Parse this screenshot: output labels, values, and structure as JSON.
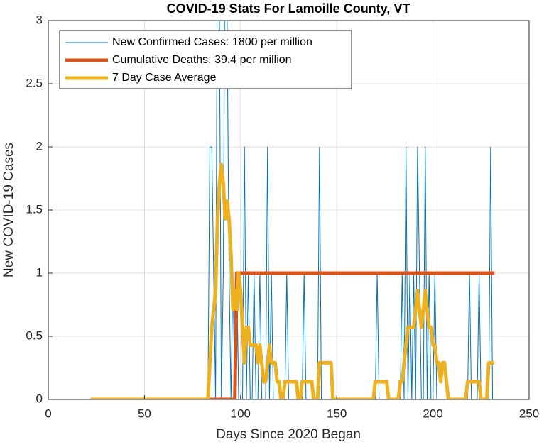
{
  "chart_data": {
    "type": "line",
    "title": "COVID-19 Stats For Lamoille County, VT",
    "x_label": "Days Since 2020 Began",
    "y_label": "New COVID-19 Cases",
    "xlim": [
      0,
      250
    ],
    "xticks": [
      0,
      50,
      100,
      150,
      200,
      250
    ],
    "ylim": [
      0,
      3
    ],
    "yticks": [
      0,
      0.5,
      1,
      1.5,
      2,
      2.5,
      3
    ],
    "grid": true,
    "legend_position": "upper left",
    "series": [
      {
        "name": "New Confirmed Cases: 1800 per million",
        "color": "#0072BD",
        "line_width": 1,
        "x": [
          22,
          83,
          84,
          85,
          86,
          87,
          88,
          89,
          90,
          91,
          92,
          93,
          94,
          95,
          96,
          97,
          98,
          99,
          101,
          102,
          103,
          104,
          105,
          106,
          107,
          108,
          109,
          110,
          111,
          113,
          114,
          115,
          116,
          117,
          123,
          124,
          125,
          132,
          133,
          134,
          140,
          141,
          142,
          170,
          171,
          172,
          183,
          184,
          185,
          186,
          187,
          188,
          189,
          190,
          191,
          192,
          193,
          194,
          195,
          196,
          197,
          198,
          199,
          200,
          201,
          202,
          218,
          219,
          220,
          223,
          224,
          225,
          229,
          230,
          231,
          232
        ],
        "values": [
          0,
          0,
          2,
          2,
          1,
          0,
          4,
          3,
          0,
          1,
          4,
          3,
          1,
          0,
          1,
          0,
          1,
          0,
          0,
          2,
          0,
          1,
          0,
          0,
          1,
          0,
          0,
          1,
          0,
          0,
          2,
          0,
          1,
          0,
          0,
          1,
          0,
          0,
          1,
          0,
          0,
          2,
          0,
          0,
          1,
          0,
          0,
          1,
          0,
          2,
          0,
          1,
          0,
          1,
          0,
          2,
          1,
          0,
          0,
          2,
          0,
          1,
          0,
          0,
          1,
          0,
          0,
          1,
          0,
          0,
          1,
          0,
          0,
          2,
          0,
          0
        ]
      },
      {
        "name": "Cumulative Deaths: 39.4 per million",
        "color": "#D95319",
        "line_width": 5,
        "x": [
          22,
          97,
          98,
          232
        ],
        "values": [
          0,
          0,
          1,
          1
        ]
      },
      {
        "name": "7 Day Case Average",
        "color": "#EDB120",
        "line_width": 5,
        "x": [
          22,
          83,
          84,
          85,
          86,
          87,
          88,
          89,
          90,
          91,
          92,
          93,
          94,
          95,
          96,
          97,
          98,
          99,
          100,
          101,
          102,
          103,
          104,
          105,
          106,
          107,
          108,
          109,
          110,
          111,
          112,
          113,
          114,
          115,
          116,
          117,
          118,
          119,
          120,
          121,
          122,
          123,
          129,
          130,
          131,
          132,
          137,
          138,
          140,
          141,
          147,
          148,
          169,
          170,
          176,
          177,
          182,
          183,
          184,
          185,
          186,
          187,
          188,
          189,
          190,
          191,
          192,
          193,
          194,
          195,
          196,
          197,
          198,
          199,
          200,
          201,
          202,
          203,
          204,
          205,
          206,
          207,
          208,
          217,
          218,
          224,
          225,
          228,
          229,
          232
        ],
        "values": [
          0,
          0,
          0.29,
          0.57,
          0.71,
          0.86,
          1.43,
          1.71,
          1.86,
          1.71,
          1.43,
          1.57,
          1.43,
          1.14,
          0.71,
          0.86,
          0.71,
          1.0,
          0.86,
          0.57,
          0.29,
          0.57,
          0.57,
          0.43,
          0.43,
          0.43,
          0.43,
          0.29,
          0.43,
          0.29,
          0.14,
          0.14,
          0.29,
          0.43,
          0.29,
          0.29,
          0.29,
          0.14,
          0.14,
          0,
          0,
          0.14,
          0.14,
          0,
          0,
          0.14,
          0.14,
          0,
          0,
          0.29,
          0.29,
          0,
          0,
          0.14,
          0.14,
          0,
          0,
          0.14,
          0.14,
          0.29,
          0.43,
          0.57,
          0.57,
          0.57,
          0.57,
          0.71,
          0.86,
          0.71,
          0.57,
          0.71,
          0.86,
          0.71,
          0.57,
          0.57,
          0.43,
          0.43,
          0.29,
          0.29,
          0.14,
          0.29,
          0.29,
          0.14,
          0,
          0,
          0.14,
          0.14,
          0,
          0,
          0.29,
          0.29
        ]
      }
    ]
  }
}
